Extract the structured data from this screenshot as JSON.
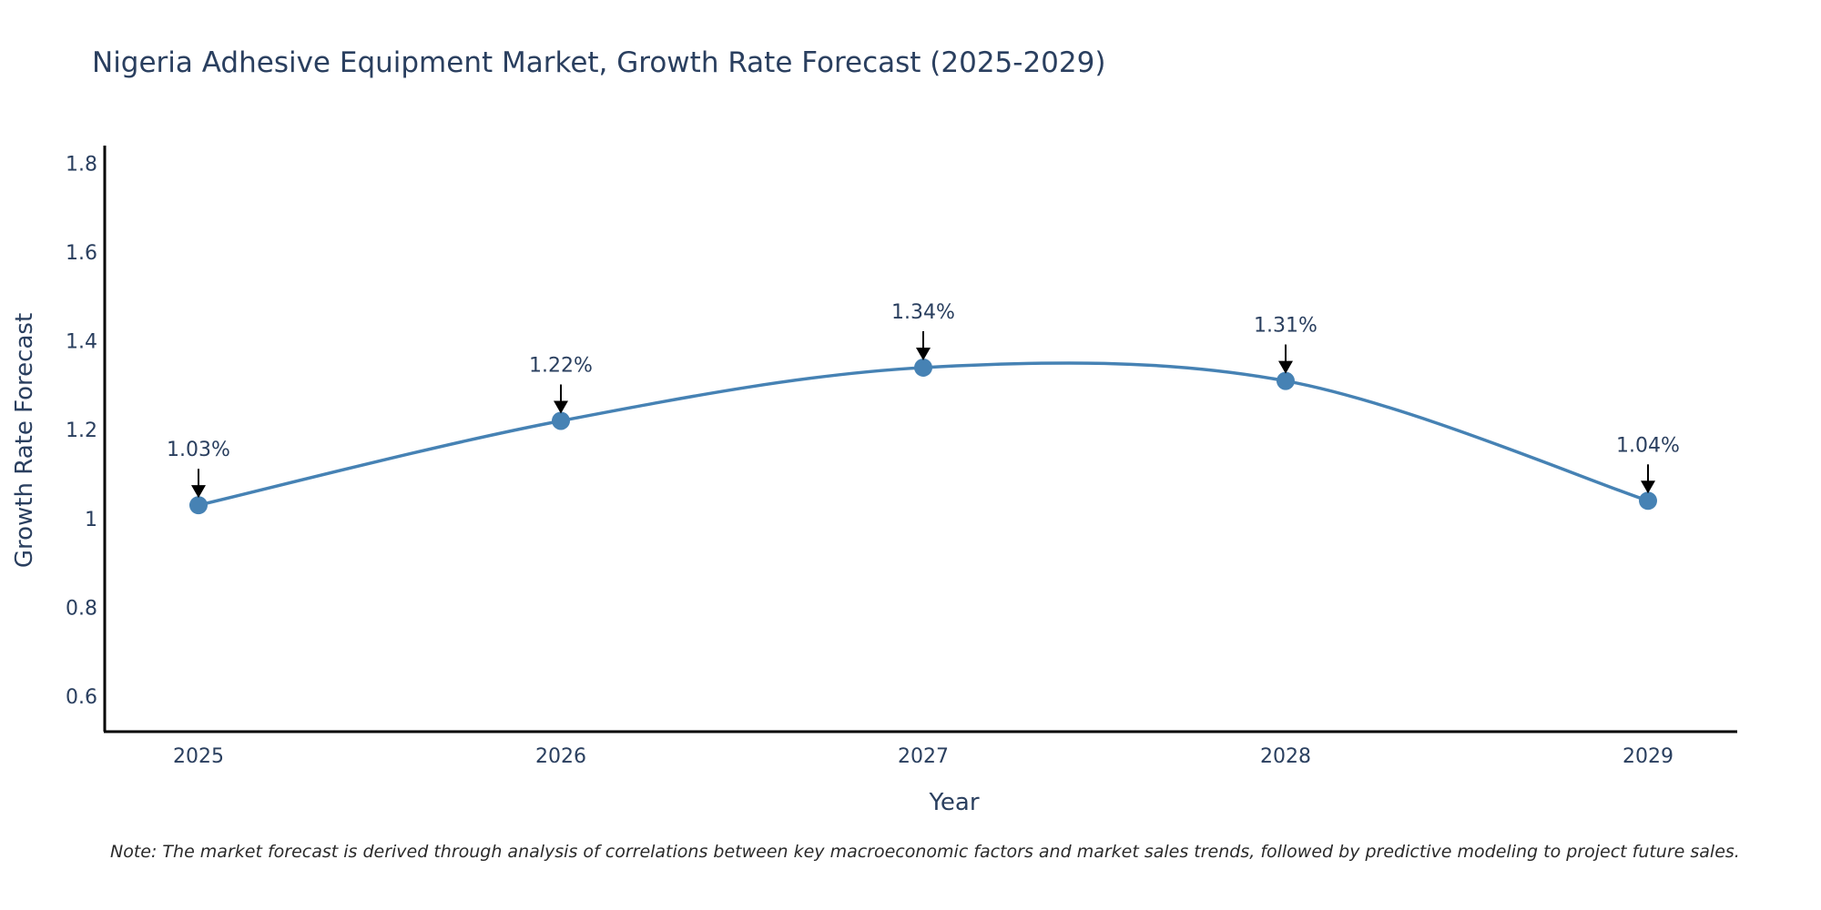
{
  "chart_data": {
    "type": "line",
    "title": "Nigeria Adhesive Equipment Market, Growth Rate Forecast (2025-2029)",
    "xlabel": "Year",
    "ylabel": "Growth Rate Forecast",
    "categories": [
      "2025",
      "2026",
      "2027",
      "2028",
      "2029"
    ],
    "series": [
      {
        "name": "Growth Rate Forecast",
        "values": [
          1.03,
          1.22,
          1.34,
          1.31,
          1.04
        ],
        "color": "#4682b4"
      }
    ],
    "annotations": [
      "1.03%",
      "1.22%",
      "1.34%",
      "1.31%",
      "1.04%"
    ],
    "y_ticks": [
      0.6,
      0.8,
      1,
      1.2,
      1.4,
      1.6,
      1.8
    ],
    "y_tick_labels": [
      "0.6",
      "0.8",
      "1",
      "1.2",
      "1.4",
      "1.6",
      "1.8"
    ],
    "ylim": [
      0.52,
      1.84
    ],
    "grid": false,
    "line_shape": "spline",
    "note": "Note: The market forecast is derived through analysis of correlations between key macroeconomic factors and market sales trends, followed by predictive modeling to project future sales."
  }
}
